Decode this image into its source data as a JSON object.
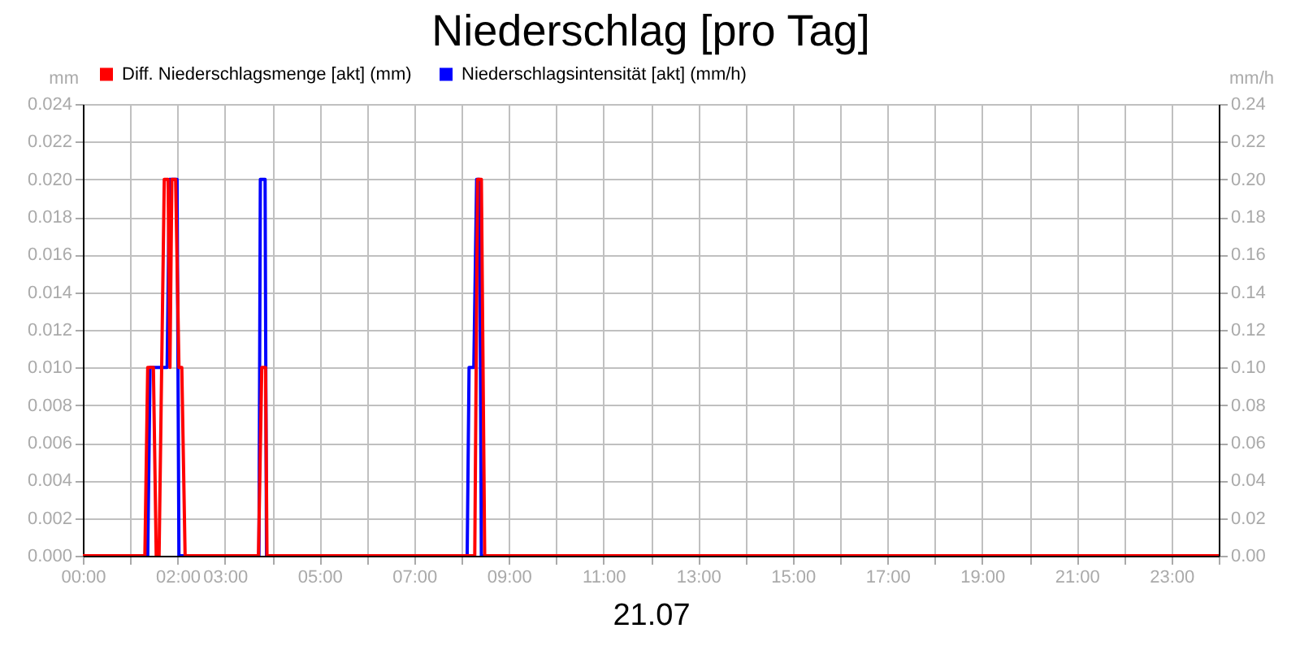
{
  "chart_data": {
    "type": "line",
    "title": "Niederschlag [pro Tag]",
    "xlabel": "21.07",
    "ylabel": "mm",
    "y2label": "mm/h",
    "xlim": [
      0,
      24
    ],
    "xticks": [
      {
        "value": 0,
        "label": "00:00"
      },
      {
        "value": 1,
        "label": null
      },
      {
        "value": 2,
        "label": "02:00"
      },
      {
        "value": 3,
        "label": "03:00"
      },
      {
        "value": 4,
        "label": null
      },
      {
        "value": 5,
        "label": "05:00"
      },
      {
        "value": 6,
        "label": null
      },
      {
        "value": 7,
        "label": "07:00"
      },
      {
        "value": 8,
        "label": null
      },
      {
        "value": 9,
        "label": "09:00"
      },
      {
        "value": 10,
        "label": null
      },
      {
        "value": 11,
        "label": "11:00"
      },
      {
        "value": 12,
        "label": null
      },
      {
        "value": 13,
        "label": "13:00"
      },
      {
        "value": 14,
        "label": null
      },
      {
        "value": 15,
        "label": "15:00"
      },
      {
        "value": 16,
        "label": null
      },
      {
        "value": 17,
        "label": "17:00"
      },
      {
        "value": 18,
        "label": null
      },
      {
        "value": 19,
        "label": "19:00"
      },
      {
        "value": 20,
        "label": null
      },
      {
        "value": 21,
        "label": "21:00"
      },
      {
        "value": 22,
        "label": null
      },
      {
        "value": 23,
        "label": "23:00"
      },
      {
        "value": 24,
        "label": null
      }
    ],
    "ylim": [
      0,
      0.024
    ],
    "yticks": [
      {
        "value": 0,
        "label": "0.000"
      },
      0.002,
      0.004,
      0.006,
      0.008,
      {
        "value": 0.01,
        "label": "0.010"
      },
      0.012,
      0.014,
      0.016,
      0.018,
      {
        "value": 0.02,
        "label": "0.020"
      },
      0.022,
      0.024
    ],
    "y2lim": [
      0,
      0.24
    ],
    "y2ticks": [
      {
        "value": 0,
        "label": "0.00"
      },
      0.02,
      0.04,
      0.06,
      0.08,
      {
        "value": 0.1,
        "label": "0.10"
      },
      0.12,
      0.14,
      0.16,
      0.18,
      {
        "value": 0.2,
        "label": "0.20"
      },
      0.22,
      0.24
    ],
    "grid": true,
    "legend": "top left",
    "marker": "none",
    "line_style": "solid",
    "series": [
      {
        "name": "Diff. Niederschlagsmenge [akt] (mm)",
        "color": "#ff0000",
        "x": [
          0,
          1.31,
          1.37,
          1.49,
          1.55,
          1.61,
          1.72,
          1.8,
          1.84,
          1.88,
          1.96,
          2.03,
          2.09,
          2.16,
          3.71,
          3.78,
          3.86,
          3.89,
          8.28,
          8.34,
          8.42,
          8.49,
          24
        ],
        "values": [
          0,
          0,
          0.01,
          0.01,
          0,
          0,
          0.02,
          0.02,
          0.01,
          0.02,
          0.02,
          0.01,
          0.01,
          0,
          0,
          0.01,
          0.01,
          0,
          0,
          0.02,
          0.02,
          0,
          0
        ]
      },
      {
        "name": "Niederschlagsintensität [akt] (mm/h)",
        "color": "#0000ff",
        "axis": "y2",
        "x": [
          0,
          1.37,
          1.42,
          1.78,
          1.83,
          1.99,
          2.03,
          3.72,
          3.75,
          3.85,
          3.88,
          8.12,
          8.16,
          8.26,
          8.32,
          8.38,
          8.42,
          24
        ],
        "values": [
          0,
          0,
          0.1,
          0.1,
          0.2,
          0.2,
          0,
          0,
          0.2,
          0.2,
          0,
          0,
          0.1,
          0.1,
          0.2,
          0.2,
          0,
          0
        ]
      }
    ]
  }
}
